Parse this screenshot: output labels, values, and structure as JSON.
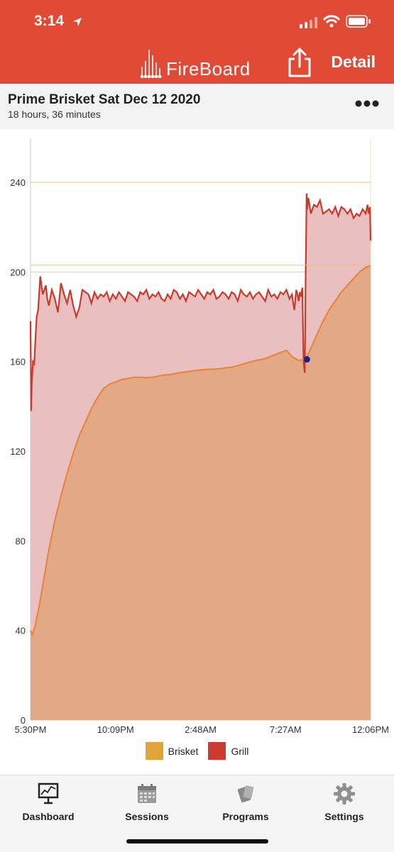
{
  "status_bar": {
    "time": "3:14"
  },
  "nav": {
    "brand": "FireBoard",
    "detail_label": "Detail"
  },
  "session": {
    "title": "Prime Brisket Sat Dec 12 2020",
    "duration": "18 hours, 36 minutes"
  },
  "chart_data": {
    "type": "area",
    "x_tick_labels": [
      "5:30PM",
      "10:09PM",
      "2:48AM",
      "7:27AM",
      "12:06PM"
    ],
    "x_ticks_minutes": [
      0,
      279,
      558,
      837,
      1116
    ],
    "y_ticks": [
      0,
      40,
      80,
      120,
      160,
      200,
      240
    ],
    "ylim": [
      0,
      240
    ],
    "target_lines": [
      203,
      240
    ],
    "marker": {
      "x_minutes": 907,
      "y": 161,
      "color": "#1a1f8c"
    },
    "series": [
      {
        "name": "Brisket",
        "color": "#e2a33a",
        "line_color": "#e8863a",
        "fill_color": "#e3a987",
        "x_minutes": [
          0,
          6,
          15,
          30,
          45,
          60,
          80,
          100,
          120,
          140,
          160,
          180,
          200,
          220,
          240,
          260,
          280,
          300,
          320,
          340,
          360,
          380,
          400,
          420,
          440,
          460,
          480,
          500,
          520,
          540,
          560,
          580,
          600,
          620,
          640,
          660,
          680,
          700,
          720,
          740,
          760,
          780,
          800,
          820,
          840,
          860,
          880,
          900,
          910,
          920,
          940,
          960,
          980,
          1000,
          1020,
          1040,
          1060,
          1080,
          1100,
          1116
        ],
        "values": [
          40,
          38,
          42,
          52,
          64,
          76,
          89,
          100,
          110,
          119,
          127,
          133,
          139,
          144,
          148,
          150,
          151,
          152,
          152.5,
          153,
          153,
          152.8,
          153,
          153.5,
          154,
          154.2,
          154.8,
          155.2,
          155.6,
          156,
          156.3,
          156.5,
          156.6,
          156.8,
          157.2,
          157.5,
          158.2,
          159,
          159.8,
          160.5,
          161,
          161.8,
          163,
          164,
          165,
          162,
          160.5,
          161,
          163,
          166,
          172,
          178,
          183,
          187,
          191,
          194,
          197,
          200,
          202,
          203
        ]
      },
      {
        "name": "Grill",
        "color": "#cd3a2f",
        "line_color": "#c93a2c",
        "fill_color": "#e9bfc0",
        "x_minutes": [
          0,
          2,
          4,
          8,
          12,
          16,
          20,
          25,
          32,
          40,
          50,
          55,
          60,
          70,
          80,
          90,
          100,
          110,
          120,
          130,
          140,
          150,
          160,
          170,
          180,
          190,
          200,
          210,
          220,
          230,
          240,
          250,
          260,
          270,
          280,
          290,
          300,
          310,
          320,
          330,
          340,
          350,
          360,
          370,
          380,
          390,
          400,
          410,
          420,
          430,
          440,
          450,
          460,
          470,
          480,
          490,
          500,
          510,
          520,
          530,
          540,
          550,
          560,
          570,
          580,
          590,
          600,
          610,
          620,
          630,
          640,
          650,
          660,
          670,
          680,
          690,
          700,
          710,
          720,
          730,
          740,
          750,
          760,
          770,
          780,
          790,
          800,
          810,
          820,
          830,
          840,
          850,
          858,
          862,
          866,
          870,
          872,
          876,
          880,
          884,
          888,
          892,
          896,
          900,
          903,
          905,
          906,
          908,
          912,
          920,
          930,
          940,
          950,
          960,
          970,
          980,
          990,
          1000,
          1010,
          1020,
          1030,
          1040,
          1050,
          1060,
          1070,
          1080,
          1090,
          1100,
          1106,
          1110,
          1114,
          1116
        ],
        "values": [
          178,
          138,
          150,
          160,
          159,
          170,
          180,
          183,
          198,
          190,
          194,
          188,
          185,
          192,
          188,
          182,
          195,
          190,
          186,
          192,
          185,
          180,
          184,
          192,
          191,
          190,
          186,
          191,
          188,
          190,
          189,
          191,
          187,
          190,
          188,
          191,
          189,
          187,
          191,
          190,
          189,
          187,
          191,
          190,
          192,
          188,
          190,
          189,
          191,
          188,
          187,
          190,
          188,
          192,
          191,
          188,
          190,
          187,
          191,
          190,
          189,
          192,
          190,
          188,
          191,
          190,
          192,
          188,
          189,
          191,
          190,
          188,
          191,
          190,
          187,
          192,
          190,
          189,
          191,
          188,
          190,
          191,
          189,
          187,
          192,
          189,
          190,
          188,
          191,
          190,
          192,
          188,
          190,
          186,
          183,
          189,
          192,
          190,
          187,
          191,
          189,
          193,
          160,
          155,
          200,
          220,
          235,
          228,
          233,
          226,
          230,
          229,
          232,
          226,
          227,
          228,
          226,
          229,
          225,
          229,
          228,
          226,
          228,
          224,
          226,
          225,
          228,
          226,
          230,
          226,
          229,
          214
        ]
      }
    ]
  },
  "legend": [
    {
      "label": "Brisket",
      "color": "#e2a33a"
    },
    {
      "label": "Grill",
      "color": "#cd3a2f"
    }
  ],
  "tabs": [
    {
      "label": "Dashboard",
      "icon": "dashboard-icon"
    },
    {
      "label": "Sessions",
      "icon": "sessions-icon"
    },
    {
      "label": "Programs",
      "icon": "programs-icon"
    },
    {
      "label": "Settings",
      "icon": "settings-icon"
    }
  ]
}
